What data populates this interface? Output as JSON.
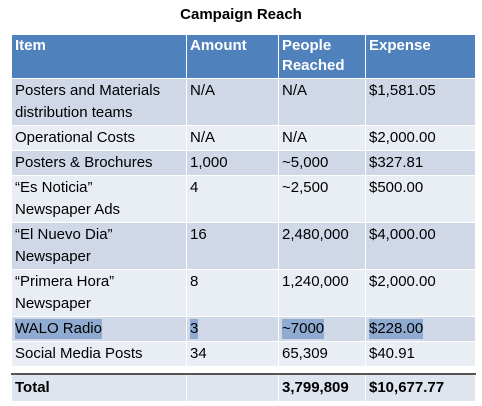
{
  "header": {
    "title": "Campaign Reach"
  },
  "table": {
    "columns": [
      [
        "Item"
      ],
      [
        "Amount"
      ],
      [
        "People",
        "Reached"
      ],
      [
        "Expense"
      ]
    ],
    "rows": [
      [
        [
          "Posters and Materials",
          "distribution teams"
        ],
        [
          "N/A"
        ],
        [
          "N/A"
        ],
        [
          "$1,581.05"
        ]
      ],
      [
        [
          "Operational Costs"
        ],
        [
          "N/A"
        ],
        [
          "N/A"
        ],
        [
          "$2,000.00"
        ]
      ],
      [
        [
          "Posters & Brochures"
        ],
        [
          "1,000"
        ],
        [
          "~5,000"
        ],
        [
          "$327.81"
        ]
      ],
      [
        [
          "“Es Noticia”",
          "Newspaper Ads"
        ],
        [
          "4"
        ],
        [
          "~2,500"
        ],
        [
          "$500.00"
        ]
      ],
      [
        [
          "“El Nuevo Dia”",
          "Newspaper"
        ],
        [
          "16"
        ],
        [
          "2,480,000"
        ],
        [
          "$4,000.00"
        ]
      ],
      [
        [
          "“Primera Hora”",
          "Newspaper"
        ],
        [
          "8"
        ],
        [
          "1,240,000"
        ],
        [
          "$2,000.00"
        ]
      ],
      [
        [
          "WALO Radio"
        ],
        [
          "3"
        ],
        [
          "~7000"
        ],
        [
          "$228.00"
        ]
      ],
      [
        [
          "Social Media Posts"
        ],
        [
          "34"
        ],
        [
          "65,309"
        ],
        [
          "$40.91"
        ]
      ]
    ],
    "total": {
      "label": "Total",
      "people": "3,799,809",
      "expense": "$10,677.77"
    }
  }
}
